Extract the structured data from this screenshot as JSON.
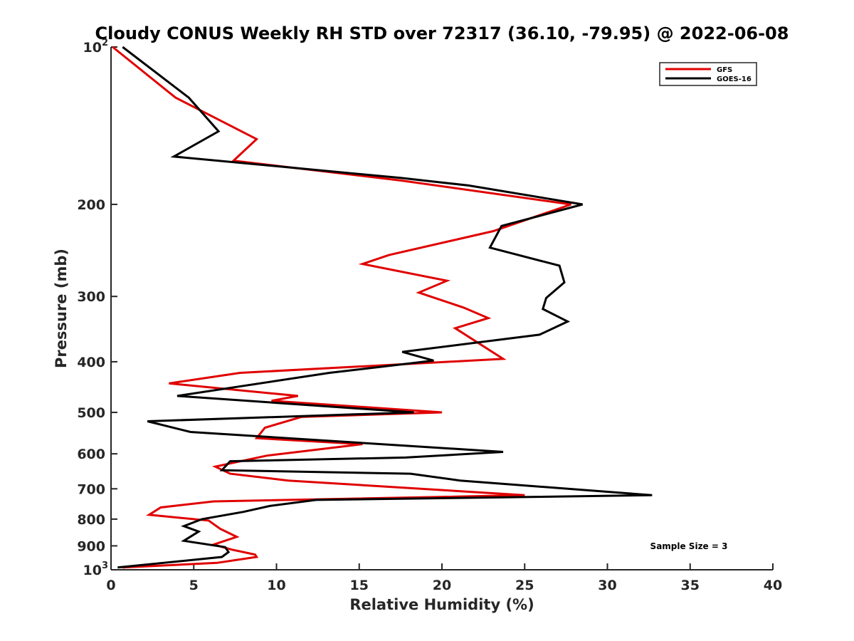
{
  "chart_data": {
    "type": "line",
    "title": "Cloudy CONUS Weekly RH STD over 72317 (36.10, -79.95) @ 2022-06-08",
    "xlabel": "Relative Humidity (%)",
    "ylabel": "Pressure (mb)",
    "xlim": [
      0,
      40
    ],
    "ylim": [
      100,
      1000
    ],
    "yscale": "log",
    "y_reversed": true,
    "grid": false,
    "legend_position": "top-right",
    "x_ticks": [
      "0",
      "5",
      "10",
      "15",
      "20",
      "25",
      "30",
      "35",
      "40"
    ],
    "y_ticks": [
      {
        "value": 100,
        "base": "10",
        "exp": "2"
      },
      {
        "value": 200,
        "label": "200"
      },
      {
        "value": 300,
        "label": "300"
      },
      {
        "value": 400,
        "label": "400"
      },
      {
        "value": 500,
        "label": "500"
      },
      {
        "value": 600,
        "label": "600"
      },
      {
        "value": 700,
        "label": "700"
      },
      {
        "value": 800,
        "label": "800"
      },
      {
        "value": 900,
        "label": "900"
      },
      {
        "value": 1000,
        "base": "10",
        "exp": "3"
      }
    ],
    "series": [
      {
        "name": "GFS",
        "color": "#e00000",
        "points": [
          [
            0.1,
            100
          ],
          [
            3.9,
            125
          ],
          [
            8.8,
            150
          ],
          [
            7.4,
            165
          ],
          [
            17.5,
            180
          ],
          [
            27.8,
            200
          ],
          [
            23.1,
            225
          ],
          [
            16.8,
            250
          ],
          [
            15.2,
            260
          ],
          [
            20.3,
            280
          ],
          [
            18.6,
            295
          ],
          [
            21.3,
            315
          ],
          [
            22.8,
            330
          ],
          [
            20.8,
            345
          ],
          [
            23.7,
            395
          ],
          [
            7.8,
            420
          ],
          [
            3.5,
            440
          ],
          [
            11.3,
            465
          ],
          [
            9.7,
            475
          ],
          [
            20.0,
            500
          ],
          [
            11.5,
            510
          ],
          [
            9.3,
            535
          ],
          [
            8.8,
            560
          ],
          [
            15.2,
            575
          ],
          [
            9.4,
            605
          ],
          [
            6.3,
            635
          ],
          [
            7.2,
            655
          ],
          [
            10.7,
            675
          ],
          [
            25.0,
            720
          ],
          [
            6.2,
            740
          ],
          [
            3.0,
            760
          ],
          [
            2.3,
            785
          ],
          [
            5.9,
            805
          ],
          [
            6.6,
            835
          ],
          [
            7.6,
            865
          ],
          [
            6.2,
            895
          ],
          [
            7.3,
            915
          ],
          [
            8.7,
            935
          ],
          [
            8.8,
            945
          ],
          [
            6.4,
            970
          ],
          [
            0.7,
            990
          ]
        ]
      },
      {
        "name": "GOES-16",
        "color": "#000000",
        "points": [
          [
            0.7,
            100
          ],
          [
            4.7,
            125
          ],
          [
            6.5,
            145
          ],
          [
            3.8,
            162
          ],
          [
            17.5,
            178
          ],
          [
            21.6,
            184
          ],
          [
            28.5,
            200
          ],
          [
            23.6,
            220
          ],
          [
            22.9,
            242
          ],
          [
            27.1,
            262
          ],
          [
            27.4,
            282
          ],
          [
            26.3,
            302
          ],
          [
            26.1,
            317
          ],
          [
            27.6,
            335
          ],
          [
            25.9,
            355
          ],
          [
            17.6,
            383
          ],
          [
            19.5,
            398
          ],
          [
            13.2,
            420
          ],
          [
            4.0,
            465
          ],
          [
            18.3,
            500
          ],
          [
            2.2,
            520
          ],
          [
            4.8,
            545
          ],
          [
            23.7,
            595
          ],
          [
            17.8,
            610
          ],
          [
            7.2,
            620
          ],
          [
            6.7,
            645
          ],
          [
            18.1,
            655
          ],
          [
            21.1,
            675
          ],
          [
            32.7,
            720
          ],
          [
            12.4,
            735
          ],
          [
            9.6,
            755
          ],
          [
            8.0,
            775
          ],
          [
            5.5,
            800
          ],
          [
            4.4,
            825
          ],
          [
            5.3,
            845
          ],
          [
            4.4,
            880
          ],
          [
            6.9,
            905
          ],
          [
            7.1,
            925
          ],
          [
            6.7,
            945
          ],
          [
            0.4,
            990
          ]
        ]
      }
    ],
    "annotation": "Sample Size = 3"
  }
}
